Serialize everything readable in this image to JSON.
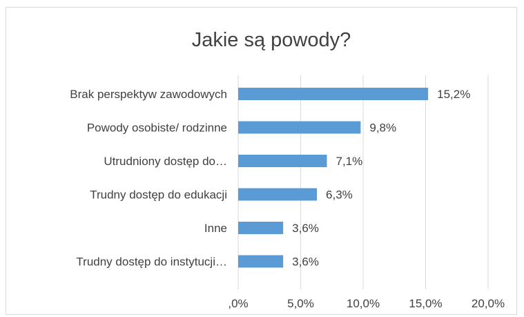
{
  "chart_data": {
    "type": "bar",
    "orientation": "horizontal",
    "title": "Jakie są powody?",
    "xlabel": "",
    "ylabel": "",
    "categories": [
      "Brak perspektyw zawodowych",
      "Powody osobiste/ rodzinne",
      "Utrudniony dostęp do…",
      "Trudny dostęp do edukacji",
      "Inne",
      "Trudny dostęp do instytucji…"
    ],
    "values": [
      15.2,
      9.8,
      7.1,
      6.3,
      3.6,
      3.6
    ],
    "data_labels": [
      "15,2%",
      "9,8%",
      "7,1%",
      "6,3%",
      "3,6%",
      "3,6%"
    ],
    "xlim": [
      0,
      20
    ],
    "x_ticks": [
      0,
      5,
      10,
      15,
      20
    ],
    "x_tick_labels": [
      ",0%",
      "5,0%",
      "10,0%",
      "15,0%",
      "20,0%"
    ],
    "grid": "vertical",
    "legend": "none",
    "bar_color": "#5b9bd5",
    "grid_color": "#d9d9d9",
    "text_color": "#404040"
  }
}
